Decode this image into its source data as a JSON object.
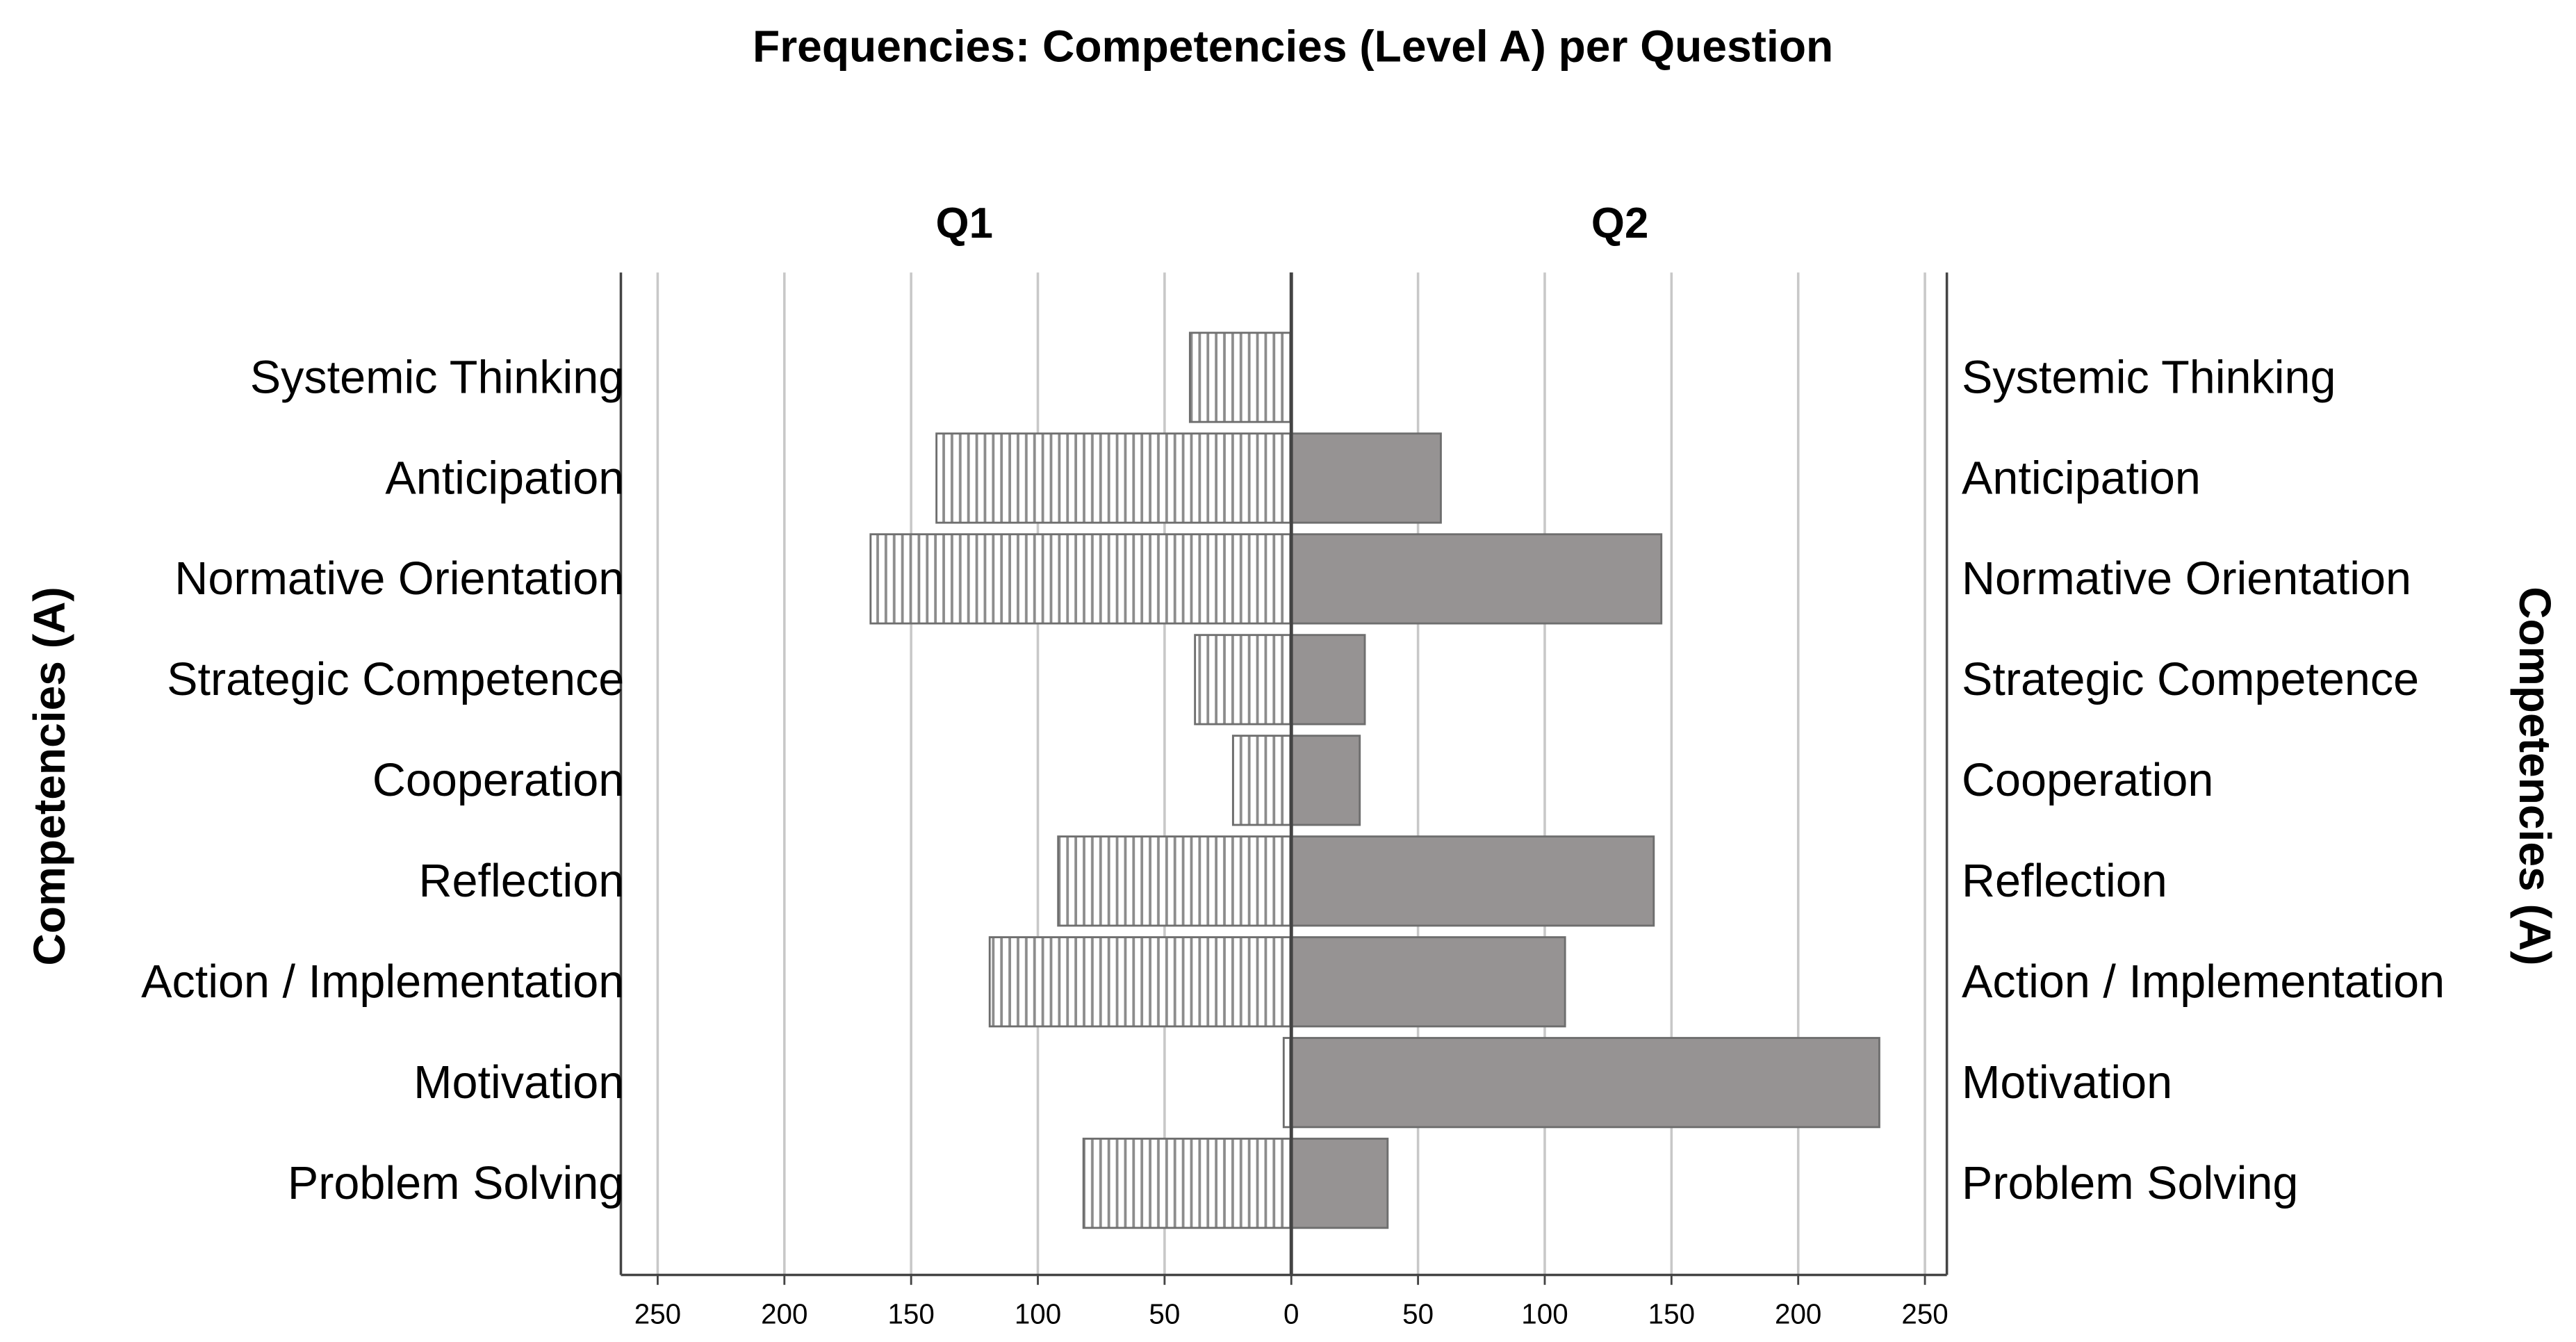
{
  "chart_data": {
    "type": "bar",
    "orientation": "horizontal",
    "layout": "butterfly",
    "title": "Frequencies: Competencies (Level A)  per Question",
    "y_label": "Competencies (A)",
    "categories": [
      "Systemic Thinking",
      "Anticipation",
      "Normative Orientation",
      "Strategic Competence",
      "Cooperation",
      "Reflection",
      "Action / Implementation",
      "Motivation",
      "Problem Solving"
    ],
    "series": [
      {
        "name": "Q1",
        "color": "#8c8c8c",
        "pattern": "vertical-lines",
        "values": [
          40,
          140,
          166,
          38,
          23,
          92,
          119,
          3,
          82
        ]
      },
      {
        "name": "Q2",
        "color": "#969393",
        "values": [
          0,
          59,
          146,
          29,
          27,
          143,
          108,
          232,
          38
        ]
      }
    ],
    "xlim": [
      0,
      258
    ],
    "xticks": [
      0,
      50,
      100,
      150,
      200,
      250
    ],
    "grid": true
  }
}
